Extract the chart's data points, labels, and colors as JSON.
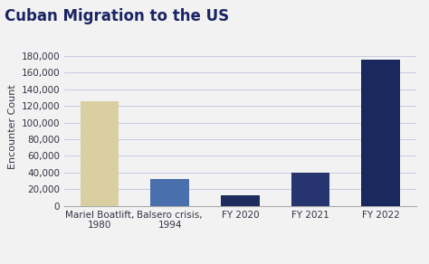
{
  "title": "Cuban Migration to the US",
  "categories": [
    "Mariel Boatlift,\n1980",
    "Balsero crisis,\n1994",
    "FY 2020",
    "FY 2021",
    "FY 2022"
  ],
  "values": [
    125000,
    32000,
    13000,
    40000,
    175000
  ],
  "bar_colors": [
    "#d9cfa0",
    "#4a6fad",
    "#1e2b5e",
    "#263570",
    "#1a2860"
  ],
  "ylabel": "Encounter Count",
  "ylim": [
    0,
    190000
  ],
  "yticks": [
    0,
    20000,
    40000,
    60000,
    80000,
    100000,
    120000,
    140000,
    160000,
    180000
  ],
  "background_color": "#f2f2f2",
  "plot_bg_color": "#f2f2f2",
  "title_color": "#1a2464",
  "title_fontsize": 12,
  "axis_label_fontsize": 8,
  "tick_fontsize": 7.5,
  "grid_color": "#c5cce0",
  "bar_width": 0.55
}
